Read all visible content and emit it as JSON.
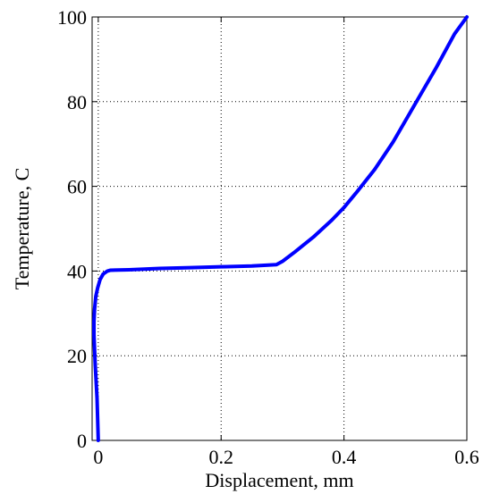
{
  "chart_data": {
    "type": "line",
    "title": "",
    "xlabel": "Displacement, mm",
    "ylabel": "Temperature, C",
    "xlim": [
      -0.01,
      0.6
    ],
    "ylim": [
      0,
      100
    ],
    "x_ticks": [
      0,
      0.2,
      0.4,
      0.6
    ],
    "x_tick_labels": [
      "0",
      "0.2",
      "0.4",
      "0.6"
    ],
    "y_ticks": [
      0,
      20,
      40,
      60,
      80,
      100
    ],
    "y_tick_labels": [
      "0",
      "20",
      "40",
      "60",
      "80",
      "100"
    ],
    "grid": true,
    "legend": "none",
    "line_color": "#0000ff",
    "series": [
      {
        "name": "",
        "color": "#0000ff",
        "x": [
          0.0,
          -0.002,
          -0.005,
          -0.007,
          -0.007,
          -0.006,
          -0.004,
          -0.001,
          0.003,
          0.008,
          0.015,
          0.02,
          0.05,
          0.1,
          0.15,
          0.2,
          0.25,
          0.29,
          0.3,
          0.32,
          0.35,
          0.38,
          0.4,
          0.42,
          0.45,
          0.48,
          0.5,
          0.52,
          0.55,
          0.58,
          0.6
        ],
        "y": [
          0.0,
          10.0,
          18.0,
          25.0,
          28.0,
          31.0,
          34.0,
          36.0,
          38.0,
          39.3,
          40.0,
          40.2,
          40.3,
          40.6,
          40.8,
          41.0,
          41.2,
          41.5,
          42.3,
          44.5,
          48.0,
          52.0,
          55.0,
          58.5,
          64.0,
          70.5,
          75.5,
          80.5,
          88.0,
          96.0,
          100.0
        ]
      }
    ]
  }
}
